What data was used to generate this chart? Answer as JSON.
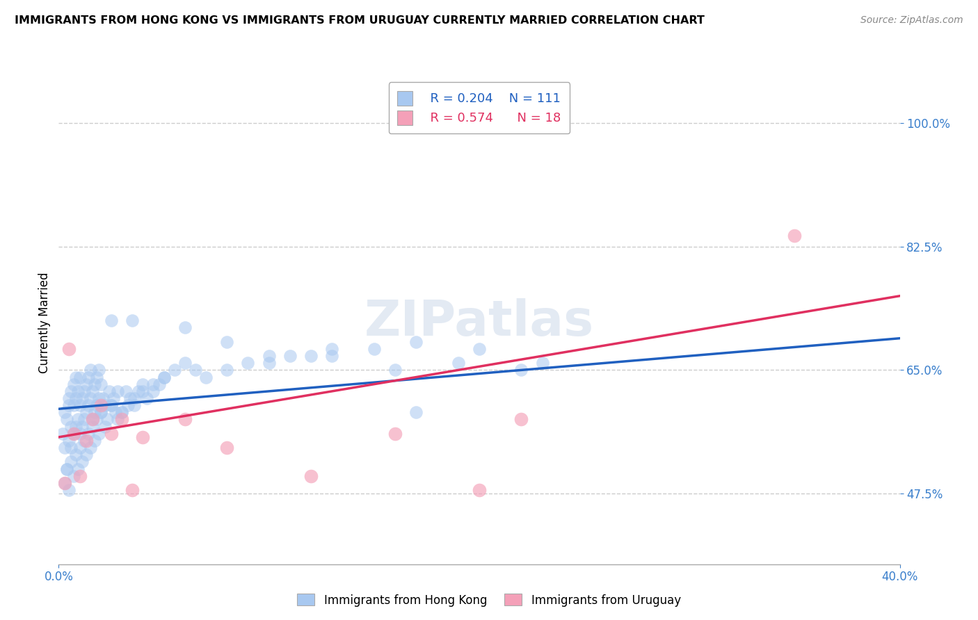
{
  "title": "IMMIGRANTS FROM HONG KONG VS IMMIGRANTS FROM URUGUAY CURRENTLY MARRIED CORRELATION CHART",
  "source": "Source: ZipAtlas.com",
  "ylabel": "Currently Married",
  "ytick_labels": [
    "47.5%",
    "65.0%",
    "82.5%",
    "100.0%"
  ],
  "ytick_values": [
    0.475,
    0.65,
    0.825,
    1.0
  ],
  "xmin": 0.0,
  "xmax": 0.4,
  "ymin": 0.375,
  "ymax": 1.06,
  "legend_r_hk": "R = 0.204",
  "legend_n_hk": "N = 111",
  "legend_r_ur": "R = 0.574",
  "legend_n_ur": "N = 18",
  "color_hk": "#A8C8F0",
  "color_ur": "#F4A0B8",
  "color_hk_line": "#2060C0",
  "color_ur_line": "#E03060",
  "watermark_text": "ZIPatlas",
  "hk_line_x0": 0.0,
  "hk_line_y0": 0.595,
  "hk_line_x1": 0.4,
  "hk_line_y1": 0.695,
  "ur_line_x0": 0.0,
  "ur_line_y0": 0.555,
  "ur_line_x1": 0.4,
  "ur_line_y1": 0.755,
  "hk_x": [
    0.002,
    0.003,
    0.003,
    0.004,
    0.004,
    0.005,
    0.005,
    0.005,
    0.006,
    0.006,
    0.006,
    0.007,
    0.007,
    0.007,
    0.008,
    0.008,
    0.008,
    0.009,
    0.009,
    0.01,
    0.01,
    0.01,
    0.011,
    0.011,
    0.012,
    0.012,
    0.013,
    0.013,
    0.014,
    0.014,
    0.015,
    0.015,
    0.016,
    0.016,
    0.017,
    0.017,
    0.018,
    0.018,
    0.019,
    0.019,
    0.02,
    0.02,
    0.021,
    0.022,
    0.023,
    0.024,
    0.025,
    0.026,
    0.027,
    0.028,
    0.03,
    0.032,
    0.034,
    0.036,
    0.038,
    0.04,
    0.042,
    0.045,
    0.048,
    0.05,
    0.003,
    0.004,
    0.005,
    0.006,
    0.007,
    0.008,
    0.009,
    0.01,
    0.011,
    0.012,
    0.013,
    0.014,
    0.015,
    0.016,
    0.017,
    0.018,
    0.019,
    0.02,
    0.022,
    0.025,
    0.028,
    0.03,
    0.033,
    0.036,
    0.04,
    0.045,
    0.05,
    0.055,
    0.06,
    0.065,
    0.07,
    0.08,
    0.09,
    0.1,
    0.11,
    0.12,
    0.13,
    0.15,
    0.17,
    0.2,
    0.025,
    0.035,
    0.06,
    0.08,
    0.1,
    0.13,
    0.16,
    0.19,
    0.22,
    0.23,
    0.17
  ],
  "hk_y": [
    0.56,
    0.54,
    0.59,
    0.51,
    0.58,
    0.55,
    0.6,
    0.61,
    0.54,
    0.57,
    0.62,
    0.56,
    0.6,
    0.63,
    0.57,
    0.61,
    0.64,
    0.58,
    0.62,
    0.56,
    0.6,
    0.64,
    0.57,
    0.61,
    0.58,
    0.62,
    0.59,
    0.63,
    0.6,
    0.64,
    0.61,
    0.65,
    0.58,
    0.62,
    0.59,
    0.63,
    0.6,
    0.64,
    0.61,
    0.65,
    0.59,
    0.63,
    0.61,
    0.6,
    0.58,
    0.62,
    0.6,
    0.61,
    0.59,
    0.62,
    0.59,
    0.62,
    0.61,
    0.6,
    0.62,
    0.63,
    0.61,
    0.62,
    0.63,
    0.64,
    0.49,
    0.51,
    0.48,
    0.52,
    0.5,
    0.53,
    0.51,
    0.54,
    0.52,
    0.55,
    0.53,
    0.56,
    0.54,
    0.57,
    0.55,
    0.58,
    0.56,
    0.59,
    0.57,
    0.6,
    0.58,
    0.59,
    0.6,
    0.61,
    0.62,
    0.63,
    0.64,
    0.65,
    0.66,
    0.65,
    0.64,
    0.65,
    0.66,
    0.66,
    0.67,
    0.67,
    0.67,
    0.68,
    0.69,
    0.68,
    0.72,
    0.72,
    0.71,
    0.69,
    0.67,
    0.68,
    0.65,
    0.66,
    0.65,
    0.66,
    0.59
  ],
  "ur_x": [
    0.003,
    0.005,
    0.007,
    0.01,
    0.013,
    0.016,
    0.02,
    0.025,
    0.03,
    0.035,
    0.04,
    0.06,
    0.08,
    0.12,
    0.16,
    0.2,
    0.22,
    0.35
  ],
  "ur_y": [
    0.49,
    0.68,
    0.56,
    0.5,
    0.55,
    0.58,
    0.6,
    0.56,
    0.58,
    0.48,
    0.555,
    0.58,
    0.54,
    0.5,
    0.56,
    0.48,
    0.58,
    0.84
  ]
}
